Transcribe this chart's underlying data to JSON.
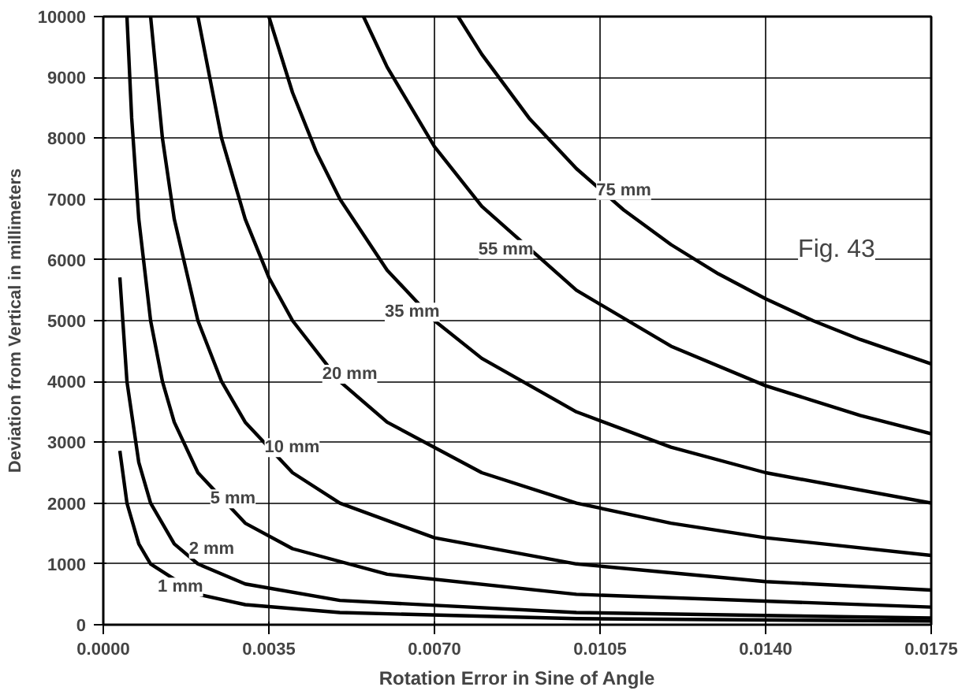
{
  "chart_data": {
    "type": "line",
    "xlabel": "Rotation Error in Sine of Angle",
    "ylabel": "Deviation from Vertical in millimeters",
    "xlim": [
      0,
      0.0175
    ],
    "ylim": [
      0,
      10000
    ],
    "xticks": [
      {
        "value": 0,
        "label": "0.0000"
      },
      {
        "value": 0.0035,
        "label": "0.0035"
      },
      {
        "value": 0.007,
        "label": "0.0070"
      },
      {
        "value": 0.0105,
        "label": "0.0105"
      },
      {
        "value": 0.014,
        "label": "0.0140"
      },
      {
        "value": 0.0175,
        "label": "0.0175"
      }
    ],
    "yticks": [
      0,
      1000,
      2000,
      3000,
      4000,
      5000,
      6000,
      7000,
      8000,
      9000,
      10000
    ],
    "grid": true,
    "marker": "none",
    "line_style": "solid",
    "series": [
      {
        "color": "#000000",
        "x": [
          0.00035,
          0.0005,
          0.00075,
          0.001,
          0.002,
          0.003,
          0.005,
          0.01,
          0.0175
        ],
        "values": [
          2860,
          2000,
          1330,
          1000,
          500,
          330,
          200,
          100,
          60
        ]
      },
      {
        "color": "#000000",
        "x": [
          0.00035,
          0.0005,
          0.00075,
          0.001,
          0.0015,
          0.002,
          0.003,
          0.005,
          0.01,
          0.0175
        ],
        "values": [
          5710,
          4000,
          2670,
          2000,
          1330,
          1000,
          670,
          400,
          200,
          110
        ]
      },
      {
        "color": "#000000",
        "x": [
          0.0005,
          0.0006,
          0.00075,
          0.001,
          0.00125,
          0.0015,
          0.002,
          0.003,
          0.004,
          0.006,
          0.01,
          0.0175
        ],
        "values": [
          10000,
          8330,
          6670,
          5000,
          4000,
          3330,
          2500,
          1670,
          1250,
          830,
          500,
          290
        ]
      },
      {
        "color": "#000000",
        "x": [
          0.001,
          0.00125,
          0.0015,
          0.002,
          0.0025,
          0.003,
          0.004,
          0.005,
          0.007,
          0.01,
          0.014,
          0.0175
        ],
        "values": [
          10000,
          8000,
          6670,
          5000,
          4000,
          3330,
          2500,
          2000,
          1430,
          1000,
          710,
          570
        ]
      },
      {
        "color": "#000000",
        "x": [
          0.002,
          0.0025,
          0.003,
          0.0035,
          0.004,
          0.005,
          0.006,
          0.008,
          0.01,
          0.012,
          0.014,
          0.0175
        ],
        "values": [
          10000,
          8000,
          6670,
          5710,
          5000,
          4000,
          3330,
          2500,
          2000,
          1670,
          1430,
          1140
        ]
      },
      {
        "color": "#000000",
        "x": [
          0.0035,
          0.004,
          0.0045,
          0.005,
          0.006,
          0.007,
          0.008,
          0.01,
          0.012,
          0.014,
          0.0175
        ],
        "values": [
          10000,
          8750,
          7780,
          7000,
          5830,
          5000,
          4380,
          3500,
          2920,
          2500,
          2000
        ]
      },
      {
        "color": "#000000",
        "x": [
          0.0055,
          0.006,
          0.007,
          0.008,
          0.01,
          0.012,
          0.014,
          0.016,
          0.0175
        ],
        "values": [
          10000,
          9170,
          7860,
          6880,
          5500,
          4580,
          3930,
          3440,
          3140
        ]
      },
      {
        "color": "#000000",
        "x": [
          0.0075,
          0.008,
          0.009,
          0.01,
          0.011,
          0.012,
          0.013,
          0.014,
          0.015,
          0.016,
          0.0175
        ],
        "values": [
          10000,
          9380,
          8330,
          7500,
          6820,
          6250,
          5770,
          5360,
          5000,
          4690,
          4290
        ]
      }
    ],
    "annotations": [
      {
        "text": "1 mm",
        "x": 0.00163,
        "y": 620
      },
      {
        "text": "2 mm",
        "x": 0.00229,
        "y": 1240
      },
      {
        "text": "5 mm",
        "x": 0.00274,
        "y": 2070
      },
      {
        "text": "10 mm",
        "x": 0.00399,
        "y": 2910
      },
      {
        "text": "20 mm",
        "x": 0.00521,
        "y": 4120
      },
      {
        "text": "35 mm",
        "x": 0.00653,
        "y": 5140
      },
      {
        "text": "55 mm",
        "x": 0.00851,
        "y": 6170
      },
      {
        "text": "75 mm",
        "x": 0.011,
        "y": 7140
      },
      "Fig. 43"
    ]
  }
}
